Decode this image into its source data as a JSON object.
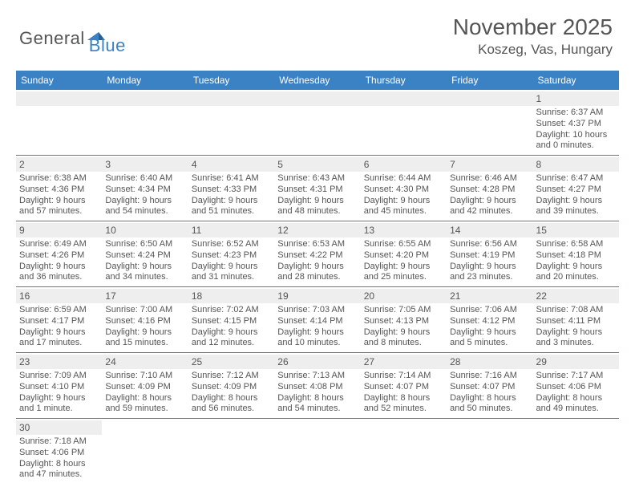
{
  "logo": {
    "dark": "General",
    "blue": "Blue"
  },
  "title": "November 2025",
  "location": "Koszeg, Vas, Hungary",
  "weekdays": [
    "Sunday",
    "Monday",
    "Tuesday",
    "Wednesday",
    "Thursday",
    "Friday",
    "Saturday"
  ],
  "colors": {
    "header_bg": "#3b82c4",
    "band_bg": "#eeeeee",
    "text": "#555555",
    "rule": "#3b82c4"
  },
  "weeks": [
    [
      null,
      null,
      null,
      null,
      null,
      null,
      {
        "n": "1",
        "sunrise": "Sunrise: 6:37 AM",
        "sunset": "Sunset: 4:37 PM",
        "daylight": "Daylight: 10 hours and 0 minutes."
      }
    ],
    [
      {
        "n": "2",
        "sunrise": "Sunrise: 6:38 AM",
        "sunset": "Sunset: 4:36 PM",
        "daylight": "Daylight: 9 hours and 57 minutes."
      },
      {
        "n": "3",
        "sunrise": "Sunrise: 6:40 AM",
        "sunset": "Sunset: 4:34 PM",
        "daylight": "Daylight: 9 hours and 54 minutes."
      },
      {
        "n": "4",
        "sunrise": "Sunrise: 6:41 AM",
        "sunset": "Sunset: 4:33 PM",
        "daylight": "Daylight: 9 hours and 51 minutes."
      },
      {
        "n": "5",
        "sunrise": "Sunrise: 6:43 AM",
        "sunset": "Sunset: 4:31 PM",
        "daylight": "Daylight: 9 hours and 48 minutes."
      },
      {
        "n": "6",
        "sunrise": "Sunrise: 6:44 AM",
        "sunset": "Sunset: 4:30 PM",
        "daylight": "Daylight: 9 hours and 45 minutes."
      },
      {
        "n": "7",
        "sunrise": "Sunrise: 6:46 AM",
        "sunset": "Sunset: 4:28 PM",
        "daylight": "Daylight: 9 hours and 42 minutes."
      },
      {
        "n": "8",
        "sunrise": "Sunrise: 6:47 AM",
        "sunset": "Sunset: 4:27 PM",
        "daylight": "Daylight: 9 hours and 39 minutes."
      }
    ],
    [
      {
        "n": "9",
        "sunrise": "Sunrise: 6:49 AM",
        "sunset": "Sunset: 4:26 PM",
        "daylight": "Daylight: 9 hours and 36 minutes."
      },
      {
        "n": "10",
        "sunrise": "Sunrise: 6:50 AM",
        "sunset": "Sunset: 4:24 PM",
        "daylight": "Daylight: 9 hours and 34 minutes."
      },
      {
        "n": "11",
        "sunrise": "Sunrise: 6:52 AM",
        "sunset": "Sunset: 4:23 PM",
        "daylight": "Daylight: 9 hours and 31 minutes."
      },
      {
        "n": "12",
        "sunrise": "Sunrise: 6:53 AM",
        "sunset": "Sunset: 4:22 PM",
        "daylight": "Daylight: 9 hours and 28 minutes."
      },
      {
        "n": "13",
        "sunrise": "Sunrise: 6:55 AM",
        "sunset": "Sunset: 4:20 PM",
        "daylight": "Daylight: 9 hours and 25 minutes."
      },
      {
        "n": "14",
        "sunrise": "Sunrise: 6:56 AM",
        "sunset": "Sunset: 4:19 PM",
        "daylight": "Daylight: 9 hours and 23 minutes."
      },
      {
        "n": "15",
        "sunrise": "Sunrise: 6:58 AM",
        "sunset": "Sunset: 4:18 PM",
        "daylight": "Daylight: 9 hours and 20 minutes."
      }
    ],
    [
      {
        "n": "16",
        "sunrise": "Sunrise: 6:59 AM",
        "sunset": "Sunset: 4:17 PM",
        "daylight": "Daylight: 9 hours and 17 minutes."
      },
      {
        "n": "17",
        "sunrise": "Sunrise: 7:00 AM",
        "sunset": "Sunset: 4:16 PM",
        "daylight": "Daylight: 9 hours and 15 minutes."
      },
      {
        "n": "18",
        "sunrise": "Sunrise: 7:02 AM",
        "sunset": "Sunset: 4:15 PM",
        "daylight": "Daylight: 9 hours and 12 minutes."
      },
      {
        "n": "19",
        "sunrise": "Sunrise: 7:03 AM",
        "sunset": "Sunset: 4:14 PM",
        "daylight": "Daylight: 9 hours and 10 minutes."
      },
      {
        "n": "20",
        "sunrise": "Sunrise: 7:05 AM",
        "sunset": "Sunset: 4:13 PM",
        "daylight": "Daylight: 9 hours and 8 minutes."
      },
      {
        "n": "21",
        "sunrise": "Sunrise: 7:06 AM",
        "sunset": "Sunset: 4:12 PM",
        "daylight": "Daylight: 9 hours and 5 minutes."
      },
      {
        "n": "22",
        "sunrise": "Sunrise: 7:08 AM",
        "sunset": "Sunset: 4:11 PM",
        "daylight": "Daylight: 9 hours and 3 minutes."
      }
    ],
    [
      {
        "n": "23",
        "sunrise": "Sunrise: 7:09 AM",
        "sunset": "Sunset: 4:10 PM",
        "daylight": "Daylight: 9 hours and 1 minute."
      },
      {
        "n": "24",
        "sunrise": "Sunrise: 7:10 AM",
        "sunset": "Sunset: 4:09 PM",
        "daylight": "Daylight: 8 hours and 59 minutes."
      },
      {
        "n": "25",
        "sunrise": "Sunrise: 7:12 AM",
        "sunset": "Sunset: 4:09 PM",
        "daylight": "Daylight: 8 hours and 56 minutes."
      },
      {
        "n": "26",
        "sunrise": "Sunrise: 7:13 AM",
        "sunset": "Sunset: 4:08 PM",
        "daylight": "Daylight: 8 hours and 54 minutes."
      },
      {
        "n": "27",
        "sunrise": "Sunrise: 7:14 AM",
        "sunset": "Sunset: 4:07 PM",
        "daylight": "Daylight: 8 hours and 52 minutes."
      },
      {
        "n": "28",
        "sunrise": "Sunrise: 7:16 AM",
        "sunset": "Sunset: 4:07 PM",
        "daylight": "Daylight: 8 hours and 50 minutes."
      },
      {
        "n": "29",
        "sunrise": "Sunrise: 7:17 AM",
        "sunset": "Sunset: 4:06 PM",
        "daylight": "Daylight: 8 hours and 49 minutes."
      }
    ],
    [
      {
        "n": "30",
        "sunrise": "Sunrise: 7:18 AM",
        "sunset": "Sunset: 4:06 PM",
        "daylight": "Daylight: 8 hours and 47 minutes."
      },
      null,
      null,
      null,
      null,
      null,
      null
    ]
  ]
}
